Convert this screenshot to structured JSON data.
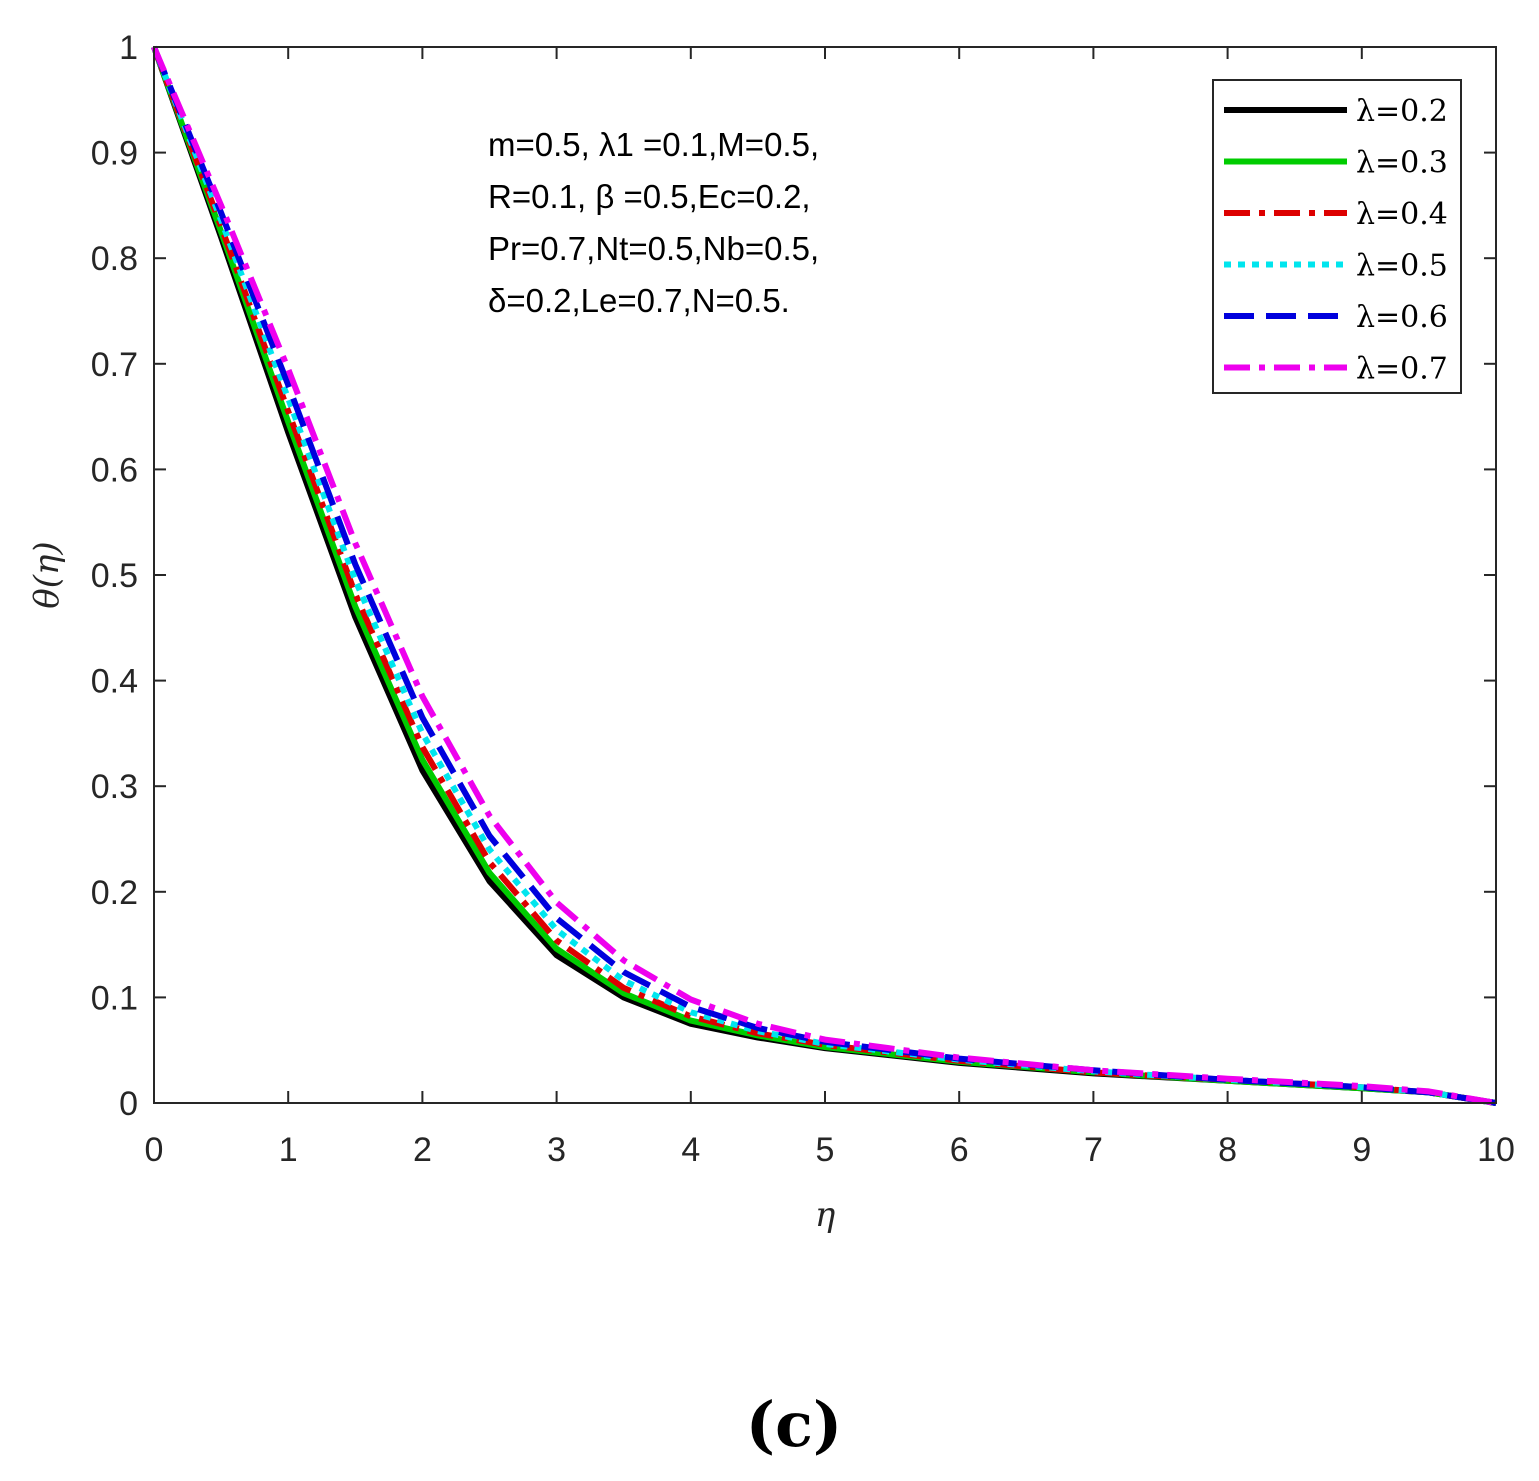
{
  "chart_data": {
    "type": "line",
    "title": "",
    "xlabel": "η",
    "ylabel": "θ(η)",
    "xlim": [
      0,
      10
    ],
    "ylim": [
      0,
      1
    ],
    "xticks": [
      "0",
      "1",
      "2",
      "3",
      "4",
      "5",
      "6",
      "7",
      "8",
      "9",
      "10"
    ],
    "yticks": [
      "0",
      "0.1",
      "0.2",
      "0.3",
      "0.4",
      "0.5",
      "0.6",
      "0.7",
      "0.8",
      "0.9",
      "1"
    ],
    "grid": false,
    "legend_position": "top-right",
    "annotation_lines": [
      "m=0.5, λ1 =0.1,M=0.5,",
      "R=0.1, β =0.5,Ec=0.2,",
      "Pr=0.7,Nt=0.5,Nb=0.5,",
      "δ=0.2,Le=0.7,N=0.5."
    ],
    "x": [
      0,
      0.5,
      1,
      1.5,
      2,
      2.5,
      3,
      3.5,
      4,
      4.5,
      5,
      6,
      7,
      8,
      9,
      9.5,
      10
    ],
    "series": [
      {
        "name": "λ=0.2",
        "color": "#000000",
        "dash": "solid",
        "values": [
          1,
          0.82,
          0.635,
          0.46,
          0.315,
          0.21,
          0.14,
          0.1,
          0.075,
          0.062,
          0.052,
          0.038,
          0.028,
          0.021,
          0.014,
          0.01,
          0
        ]
      },
      {
        "name": "λ=0.3",
        "color": "#00cc00",
        "dash": "solid",
        "values": [
          1,
          0.825,
          0.645,
          0.47,
          0.325,
          0.218,
          0.146,
          0.104,
          0.078,
          0.064,
          0.053,
          0.039,
          0.029,
          0.021,
          0.014,
          0.01,
          0
        ]
      },
      {
        "name": "λ=0.4",
        "color": "#dd0000",
        "dash": "dashdot",
        "values": [
          1,
          0.83,
          0.655,
          0.482,
          0.337,
          0.228,
          0.154,
          0.109,
          0.082,
          0.066,
          0.055,
          0.04,
          0.029,
          0.022,
          0.015,
          0.01,
          0
        ]
      },
      {
        "name": "λ=0.5",
        "color": "#00e5ee",
        "dash": "dotted",
        "values": [
          1,
          0.836,
          0.667,
          0.495,
          0.35,
          0.24,
          0.164,
          0.116,
          0.086,
          0.068,
          0.056,
          0.041,
          0.03,
          0.022,
          0.015,
          0.01,
          0
        ]
      },
      {
        "name": "λ=0.6",
        "color": "#0000dd",
        "dash": "dashed",
        "values": [
          1,
          0.843,
          0.68,
          0.51,
          0.365,
          0.253,
          0.175,
          0.124,
          0.091,
          0.071,
          0.058,
          0.042,
          0.031,
          0.022,
          0.015,
          0.01,
          0
        ]
      },
      {
        "name": "λ=0.7",
        "color": "#ee00ee",
        "dash": "dashdot",
        "values": [
          1,
          0.85,
          0.695,
          0.53,
          0.385,
          0.272,
          0.19,
          0.135,
          0.098,
          0.075,
          0.06,
          0.043,
          0.031,
          0.023,
          0.016,
          0.011,
          0
        ]
      }
    ]
  },
  "panel_label": "(c)"
}
